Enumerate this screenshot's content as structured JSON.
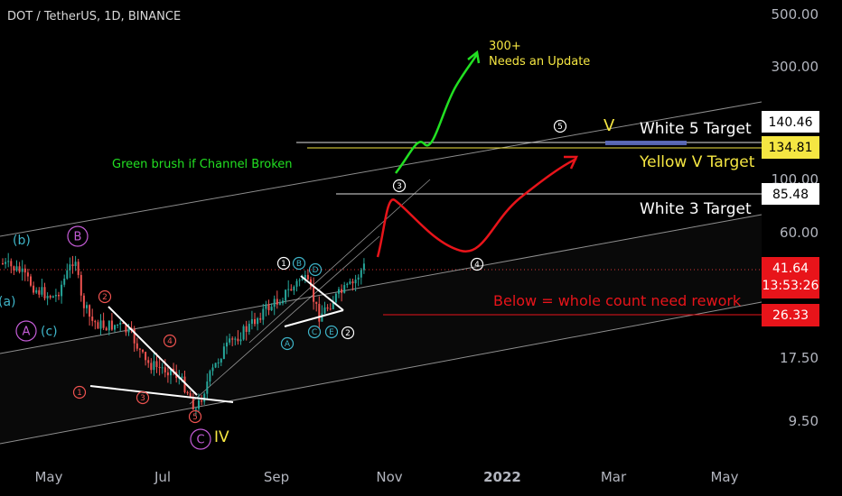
{
  "header": {
    "symbol": "DOT / TetherUS, 1D, BINANCE"
  },
  "chart_data": {
    "type": "candlestick",
    "y_scale": "log",
    "y_axis_ticks": [
      "500.00",
      "300.00",
      "100.00",
      "60.00",
      "17.50",
      "9.50"
    ],
    "x_axis_ticks": [
      "May",
      "Jul",
      "Sep",
      "Nov",
      "2022",
      "Mar",
      "May"
    ],
    "price_labels": [
      {
        "value": "140.46",
        "style": "white"
      },
      {
        "value": "134.81",
        "style": "yellow"
      },
      {
        "value": "85.48",
        "style": "white"
      },
      {
        "value": "41.64",
        "time": "13:53:26",
        "style": "red"
      },
      {
        "value": "26.33",
        "style": "red"
      }
    ],
    "annotations": {
      "targets": [
        "White 5 Target",
        "Yellow V Target",
        "White 3 Target"
      ],
      "rework_note": "Below = whole count need rework",
      "green_note": "Green brush if Channel Broken",
      "update_note": [
        "300+",
        "Needs an Update"
      ],
      "wave_labels": [
        "(b)",
        "B",
        "(a)",
        "A",
        "(c)",
        "C",
        "IV",
        "V"
      ],
      "circled_numbers": [
        "1",
        "2",
        "3",
        "4",
        "5"
      ],
      "sub_labels": [
        "A",
        "B",
        "C",
        "D",
        "E"
      ]
    },
    "colors": {
      "up_candle": "#26a69a",
      "down_candle": "#ef5350",
      "forecast_green": "#22e022",
      "forecast_red": "#e8141a",
      "target_yellow": "#f5e642",
      "wave_purple": "#c45cd6",
      "wave_teal": "#3fb5c9"
    }
  }
}
